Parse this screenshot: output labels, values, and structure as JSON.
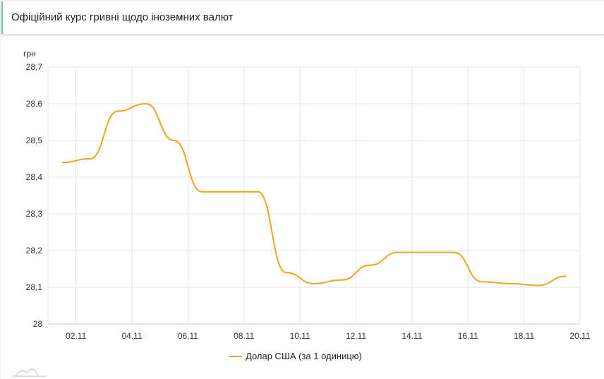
{
  "header": {
    "title": "Офіційний курс гривні щодо іноземних валют"
  },
  "chart_data": {
    "type": "line",
    "title": "",
    "xlabel": "",
    "ylabel": "грн",
    "ylim": [
      28,
      28.7
    ],
    "yticks": [
      "28",
      "28,1",
      "28,2",
      "28,3",
      "28,4",
      "28,5",
      "28,6",
      "28,7"
    ],
    "xticks": [
      "02.11",
      "04.11",
      "06.11",
      "08.11",
      "10.11",
      "12.11",
      "14.11",
      "16.11",
      "18.11",
      "20.11"
    ],
    "grid": true,
    "legend_position": "bottom",
    "x": [
      "01.11",
      "02.11",
      "03.11",
      "04.11",
      "05.11",
      "06.11",
      "07.11",
      "08.11",
      "09.11",
      "10.11",
      "11.11",
      "12.11",
      "13.11",
      "14.11",
      "15.11",
      "16.11",
      "17.11",
      "18.11",
      "19.11"
    ],
    "series": [
      {
        "name": "Долар США (за 1 одиницю)",
        "color": "#f0a31e",
        "values": [
          28.44,
          28.45,
          28.58,
          28.6,
          28.5,
          28.36,
          28.36,
          28.36,
          28.14,
          28.11,
          28.12,
          28.16,
          28.195,
          28.195,
          28.195,
          28.115,
          28.11,
          28.105,
          28.13
        ]
      }
    ]
  }
}
